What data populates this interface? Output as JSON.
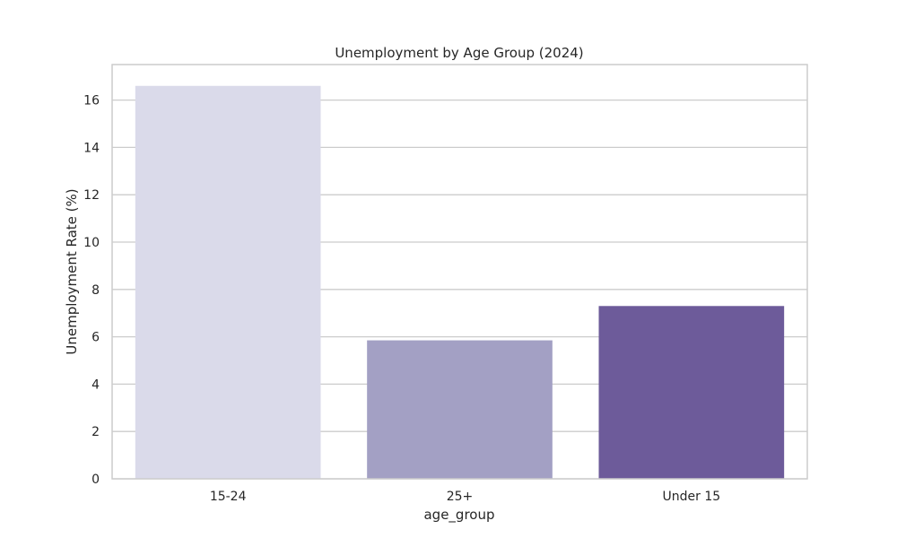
{
  "chart_data": {
    "type": "bar",
    "title": "Unemployment by Age Group (2024)",
    "xlabel": "age_group",
    "ylabel": "Unemployment Rate (%)",
    "categories": [
      "15-24",
      "25+",
      "Under 15"
    ],
    "values": [
      16.6,
      5.85,
      7.3
    ],
    "ylim": [
      0,
      17.5
    ],
    "yticks": [
      0,
      2,
      4,
      6,
      8,
      10,
      12,
      14,
      16
    ],
    "grid": true,
    "colors": [
      "#dadaea",
      "#a3a0c4",
      "#6d5b9a"
    ],
    "grid_color": "#cccccc",
    "frame_color": "#cccccc"
  }
}
